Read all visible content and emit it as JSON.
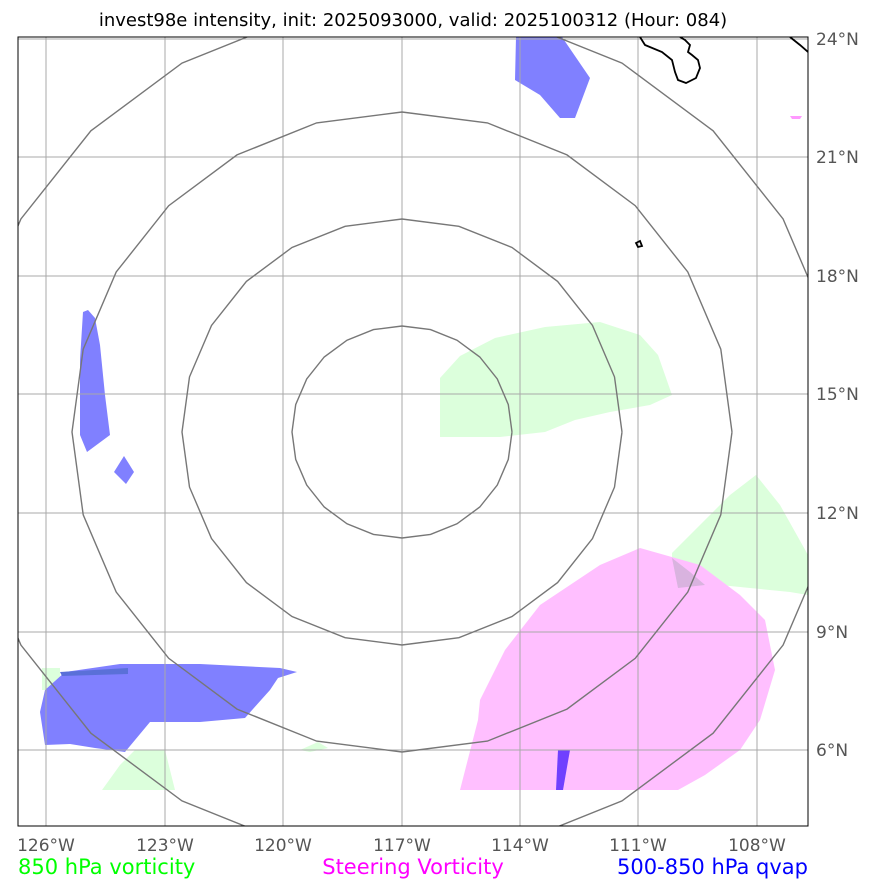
{
  "title": "invest98e intensity, init: 2025093000, valid: 2025100312 (Hour: 084)",
  "axes": {
    "lon_labels": [
      "126°W",
      "123°W",
      "120°W",
      "117°W",
      "114°W",
      "111°W",
      "108°W"
    ],
    "lat_labels": [
      "24°N",
      "21°N",
      "18°N",
      "15°N",
      "12°N",
      "9°N",
      "6°N"
    ]
  },
  "legend": [
    {
      "label": "850 hPa vorticity",
      "color": "#00ff00"
    },
    {
      "label": "Steering Vorticity",
      "color": "#ff00ff"
    },
    {
      "label": "500-850 hPa qvap",
      "color": "#0000ff"
    }
  ],
  "colors": {
    "vorticity_850": "#dcffdc",
    "steering_vorticity": "#ffbfff",
    "qvap": "#8080ff",
    "rings": "#777777",
    "grid": "#a9a9a9",
    "coast": "#000000"
  }
}
